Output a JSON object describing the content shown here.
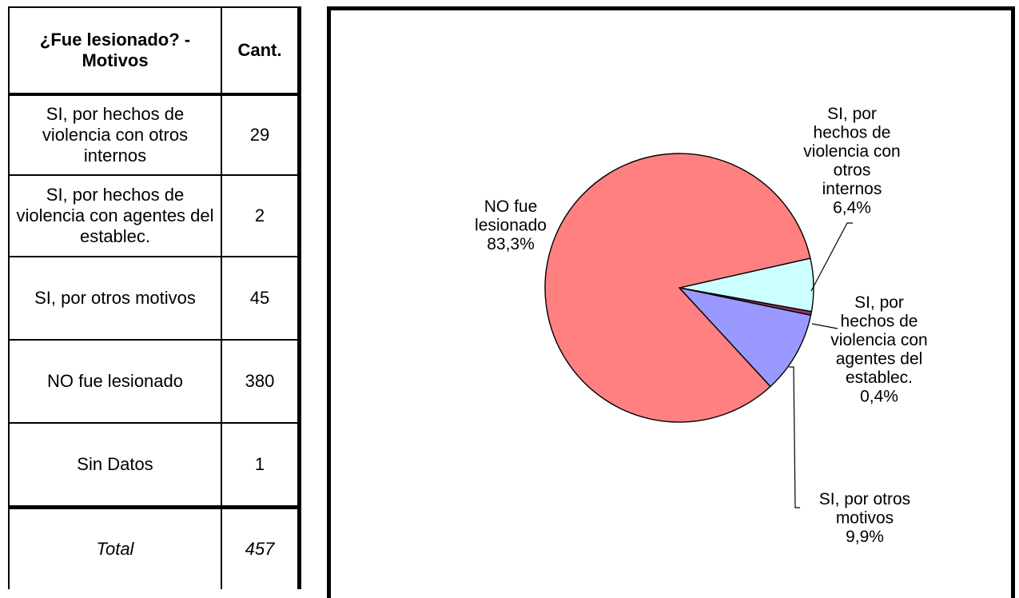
{
  "table": {
    "header": {
      "motivos": "¿Fue lesionado? - Motivos",
      "cant": "Cant."
    },
    "rows": [
      {
        "label": "SI, por hechos de violencia con otros internos",
        "count": "29"
      },
      {
        "label": "SI, por hechos de violencia con agentes del establec.",
        "count": "2"
      },
      {
        "label": "SI, por otros motivos",
        "count": "45"
      },
      {
        "label": "NO fue lesionado",
        "count": "380"
      },
      {
        "label": "Sin Datos",
        "count": "1"
      }
    ],
    "total": {
      "label": "Total",
      "count": "457"
    }
  },
  "chart_data": {
    "type": "pie",
    "slices": [
      {
        "label": [
          "SI, por",
          "hechos de",
          "violencia con",
          "otros",
          "internos"
        ],
        "value": 29,
        "percent": "6,4%",
        "color": "#ccffff"
      },
      {
        "label": [
          "SI, por",
          "hechos de",
          "violencia con",
          "agentes del",
          "establec."
        ],
        "value": 2,
        "percent": "0,4%",
        "color": "#993366"
      },
      {
        "label": [
          "SI, por otros",
          "motivos"
        ],
        "value": 45,
        "percent": "9,9%",
        "color": "#9999ff"
      },
      {
        "label": [
          "NO fue",
          "lesionado"
        ],
        "value": 380,
        "percent": "83,3%",
        "color": "#ff8080"
      }
    ],
    "legend": "none"
  }
}
